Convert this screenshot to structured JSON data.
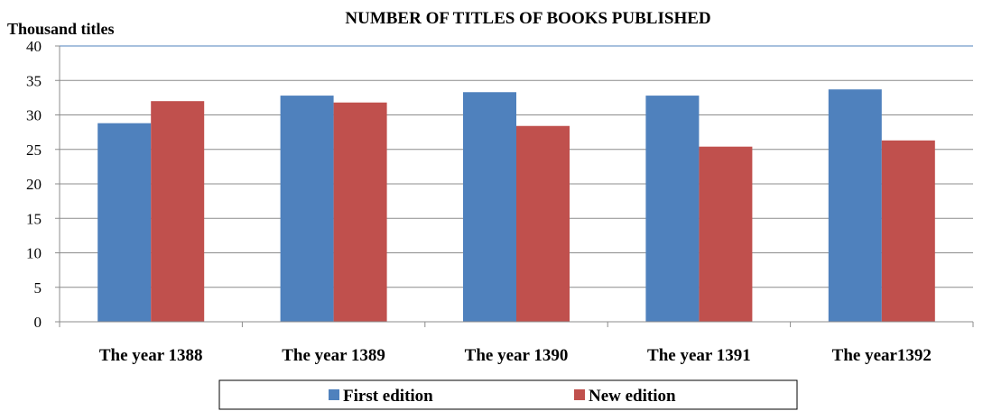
{
  "chart_data": {
    "type": "bar",
    "title": "NUMBER OF TITLES OF BOOKS  PUBLISHED",
    "ylabel": "Thousand  titles",
    "xlabel": "",
    "categories": [
      "The year 1388",
      "The year 1389",
      "The year 1390",
      "The year 1391",
      "The year1392"
    ],
    "series": [
      {
        "name": "First edition",
        "color": "#4F81BD",
        "values": [
          28.8,
          32.8,
          33.3,
          32.8,
          33.7
        ]
      },
      {
        "name": "New edition",
        "color": "#C0504D",
        "values": [
          32.0,
          31.8,
          28.4,
          25.4,
          26.3
        ]
      }
    ],
    "ylim": [
      0,
      40
    ],
    "yticks": [
      0,
      5,
      10,
      15,
      20,
      25,
      30,
      35,
      40
    ],
    "grid": true,
    "legend_position": "bottom"
  }
}
